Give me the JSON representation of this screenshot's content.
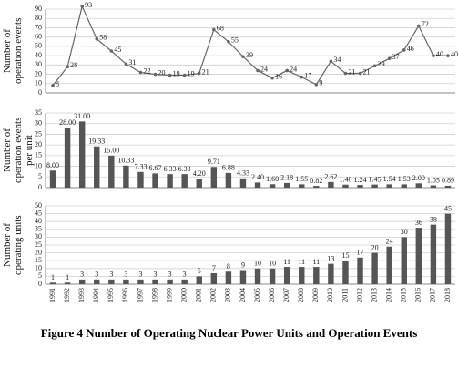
{
  "chart_data": [
    {
      "type": "line",
      "ylabel": "Number of operation events",
      "color": "#666666",
      "grid": true,
      "values": [
        8,
        28,
        93,
        58,
        45,
        31,
        22,
        20,
        19,
        19,
        21,
        68,
        55,
        39,
        24,
        16,
        24,
        17,
        9,
        34,
        21,
        21,
        29,
        37,
        46,
        72,
        40,
        40
      ],
      "ylim": [
        0,
        90
      ],
      "yticks": [
        0,
        10,
        20,
        30,
        40,
        50,
        60,
        70,
        80,
        90
      ]
    },
    {
      "type": "bar",
      "ylabel": "Number of operation events per unit",
      "color": "#555555",
      "grid": true,
      "values": [
        8,
        28,
        31,
        19.33,
        15,
        10.33,
        7.33,
        6.67,
        6.33,
        6.33,
        4.2,
        9.71,
        6.88,
        4.33,
        2.4,
        1.6,
        2.18,
        1.55,
        0.82,
        2.62,
        1.4,
        1.24,
        1.45,
        1.54,
        1.53,
        2,
        1.05,
        0.89
      ],
      "value_labels": [
        "8.00",
        "28.00",
        "31.00",
        "19.33",
        "15.00",
        "10.33",
        "7.33",
        "6.67",
        "6.33",
        "6.33",
        "4.20",
        "9.71",
        "6.88",
        "4.33",
        "2.40",
        "1.60",
        "2.18",
        "1.55",
        "0.82",
        "2.62",
        "1.40",
        "1.24",
        "1.45",
        "1.54",
        "1.53",
        "2.00",
        "1.05",
        "0.89"
      ],
      "ylim": [
        0,
        35
      ],
      "yticks": [
        0,
        5,
        10,
        15,
        20,
        25,
        30,
        35
      ]
    },
    {
      "type": "bar",
      "ylabel": "Number of operating units",
      "color": "#555555",
      "grid": true,
      "categories": [
        "1991",
        "1992",
        "1993",
        "1994",
        "1995",
        "1996",
        "1997",
        "1998",
        "1999",
        "2000",
        "2001",
        "2002",
        "2003",
        "2004",
        "2005",
        "2006",
        "2007",
        "2008",
        "2009",
        "2010",
        "2011",
        "2012",
        "2013",
        "2014",
        "2015",
        "2016",
        "2017",
        "2018"
      ],
      "values": [
        1,
        1,
        3,
        3,
        3,
        3,
        3,
        3,
        3,
        3,
        5,
        7,
        8,
        9,
        10,
        10,
        11,
        11,
        11,
        13,
        15,
        17,
        20,
        24,
        30,
        36,
        38,
        45
      ],
      "ylim": [
        0,
        50
      ],
      "yticks": [
        0,
        5,
        10,
        15,
        20,
        25,
        30,
        35,
        40,
        45,
        50
      ]
    }
  ],
  "caption": "Figure 4 Number of Operating Nuclear Power Units and Operation Events"
}
